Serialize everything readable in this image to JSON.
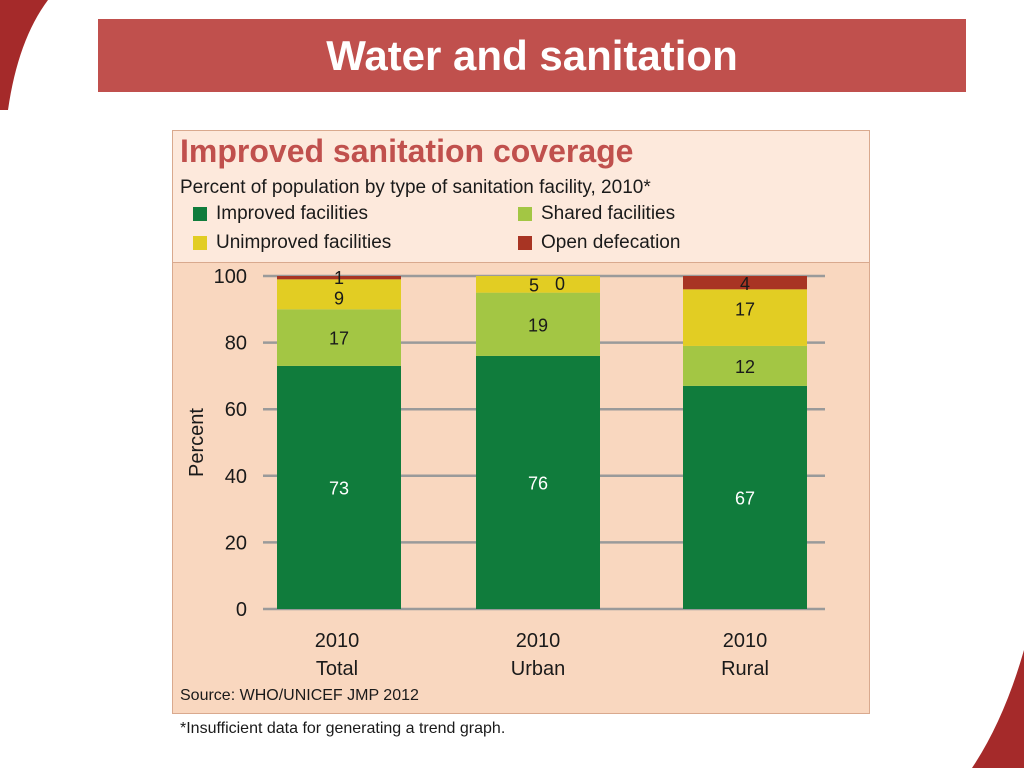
{
  "slide": {
    "title": "Water and sanitation",
    "footnote": "*Insufficient data for generating a trend graph."
  },
  "colors": {
    "title_bar": "#c0504d",
    "panel_bg": "#f9d7bf",
    "header_bg": "#fde9dc",
    "chart_title": "#c0504d",
    "gridline": "#9a9a9a",
    "decoration": "#a52a2a"
  },
  "chart_data": {
    "type": "bar",
    "stacked": true,
    "title": "Improved sanitation coverage",
    "subtitle": "Percent of population by type of sanitation facility, 2010*",
    "ylabel": "Percent",
    "ylim": [
      0,
      100
    ],
    "yticks": [
      0,
      20,
      40,
      60,
      80,
      100
    ],
    "grid": true,
    "legend_position": "top",
    "categories": [
      [
        "2010",
        "Total"
      ],
      [
        "2010",
        "Urban"
      ],
      [
        "2010",
        "Rural"
      ]
    ],
    "series": [
      {
        "name": "Improved facilities",
        "color": "#107c3c",
        "values": [
          73,
          76,
          67
        ]
      },
      {
        "name": "Shared facilities",
        "color": "#a3c644",
        "values": [
          17,
          19,
          12
        ]
      },
      {
        "name": "Unimproved facilities",
        "color": "#e2cd23",
        "values": [
          9,
          5,
          17
        ]
      },
      {
        "name": "Open defecation",
        "color": "#a83423",
        "values": [
          1,
          0,
          4
        ]
      }
    ],
    "source": "Source:  WHO/UNICEF JMP 2012"
  }
}
